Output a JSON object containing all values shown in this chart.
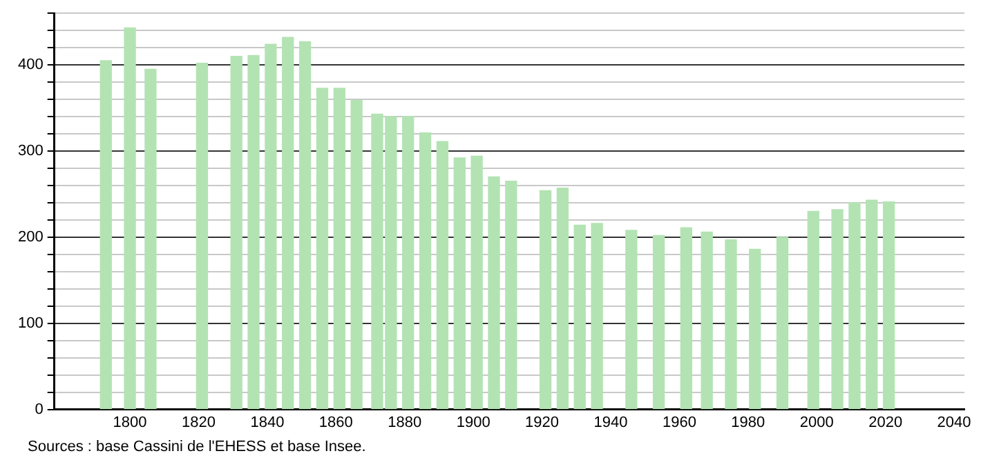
{
  "chart_data": {
    "type": "bar",
    "x": [
      1793,
      1800,
      1806,
      1821,
      1831,
      1836,
      1841,
      1846,
      1851,
      1856,
      1861,
      1866,
      1872,
      1876,
      1881,
      1886,
      1891,
      1896,
      1901,
      1906,
      1911,
      1921,
      1926,
      1931,
      1936,
      1946,
      1954,
      1962,
      1968,
      1975,
      1982,
      1990,
      1999,
      2006,
      2011,
      2016,
      2021
    ],
    "values": [
      405,
      443,
      395,
      402,
      410,
      411,
      424,
      432,
      427,
      373,
      373,
      359,
      343,
      340,
      340,
      321,
      311,
      292,
      294,
      270,
      265,
      254,
      257,
      214,
      216,
      208,
      202,
      211,
      206,
      197,
      186,
      200,
      230,
      232,
      240,
      243,
      241
    ],
    "color": "#b3e3b3",
    "xlim": [
      1778,
      2043
    ],
    "xticks": [
      1800,
      1820,
      1840,
      1860,
      1880,
      1900,
      1920,
      1940,
      1960,
      1980,
      2000,
      2020,
      2040
    ],
    "ylim": [
      0,
      460
    ],
    "yticks": [
      0,
      {
        "value": 20,
        "label": null
      },
      {
        "value": 40,
        "label": null
      },
      {
        "value": 60,
        "label": null
      },
      {
        "value": 80,
        "label": null
      },
      100,
      {
        "value": 120,
        "label": null
      },
      {
        "value": 140,
        "label": null
      },
      {
        "value": 160,
        "label": null
      },
      {
        "value": 180,
        "label": null
      },
      200,
      {
        "value": 220,
        "label": null
      },
      {
        "value": 240,
        "label": null
      },
      {
        "value": 260,
        "label": null
      },
      {
        "value": 280,
        "label": null
      },
      300,
      {
        "value": 320,
        "label": null
      },
      {
        "value": 340,
        "label": null
      },
      {
        "value": 360,
        "label": null
      },
      {
        "value": 380,
        "label": null
      },
      400,
      {
        "value": 420,
        "label": null
      },
      {
        "value": 440,
        "label": null
      },
      {
        "value": 460,
        "label": null
      }
    ],
    "grid": "y",
    "legend": false,
    "annotations": [
      "Sources : base Cassini de l'EHESS et base Insee."
    ]
  }
}
